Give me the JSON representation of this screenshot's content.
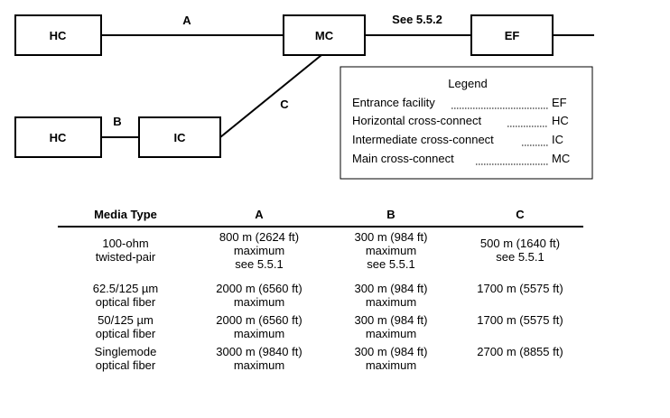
{
  "diagram": {
    "boxes": {
      "hc_top": "HC",
      "mc": "MC",
      "ef": "EF",
      "hc_bottom": "HC",
      "ic": "IC"
    },
    "links": {
      "a": "A",
      "b": "B",
      "c": "C",
      "mc_ef": "See 5.5.2"
    }
  },
  "legend": {
    "title": "Legend",
    "items": [
      {
        "name": "Entrance facility",
        "abbr": "EF"
      },
      {
        "name": "Horizontal cross-connect",
        "abbr": "HC"
      },
      {
        "name": "Intermediate cross-connect",
        "abbr": "IC"
      },
      {
        "name": "Main cross-connect",
        "abbr": "MC"
      }
    ]
  },
  "table": {
    "headers": [
      "Media Type",
      "A",
      "B",
      "C"
    ],
    "rows": [
      {
        "media": [
          "100-ohm",
          "twisted-pair"
        ],
        "a": [
          "800 m (2624 ft)",
          "maximum",
          "see 5.5.1"
        ],
        "b": [
          "300 m (984 ft)",
          "maximum",
          "see 5.5.1"
        ],
        "c": [
          "500 m (1640 ft)",
          "see 5.5.1"
        ]
      },
      {
        "media": [
          "62.5/125 µm",
          "optical fiber"
        ],
        "a": [
          "2000 m (6560 ft)",
          "maximum"
        ],
        "b": [
          "300 m (984 ft)",
          "maximum"
        ],
        "c": [
          "1700 m (5575 ft)"
        ]
      },
      {
        "media": [
          "50/125 µm",
          "optical fiber"
        ],
        "a": [
          "2000 m (6560 ft)",
          "maximum"
        ],
        "b": [
          "300 m (984 ft)",
          "maximum"
        ],
        "c": [
          "1700 m (5575 ft)"
        ]
      },
      {
        "media": [
          "Singlemode",
          "optical fiber"
        ],
        "a": [
          "3000 m (9840 ft)",
          "maximum"
        ],
        "b": [
          "300 m (984 ft)",
          "maximum"
        ],
        "c": [
          "2700 m (8855 ft)"
        ]
      }
    ]
  }
}
